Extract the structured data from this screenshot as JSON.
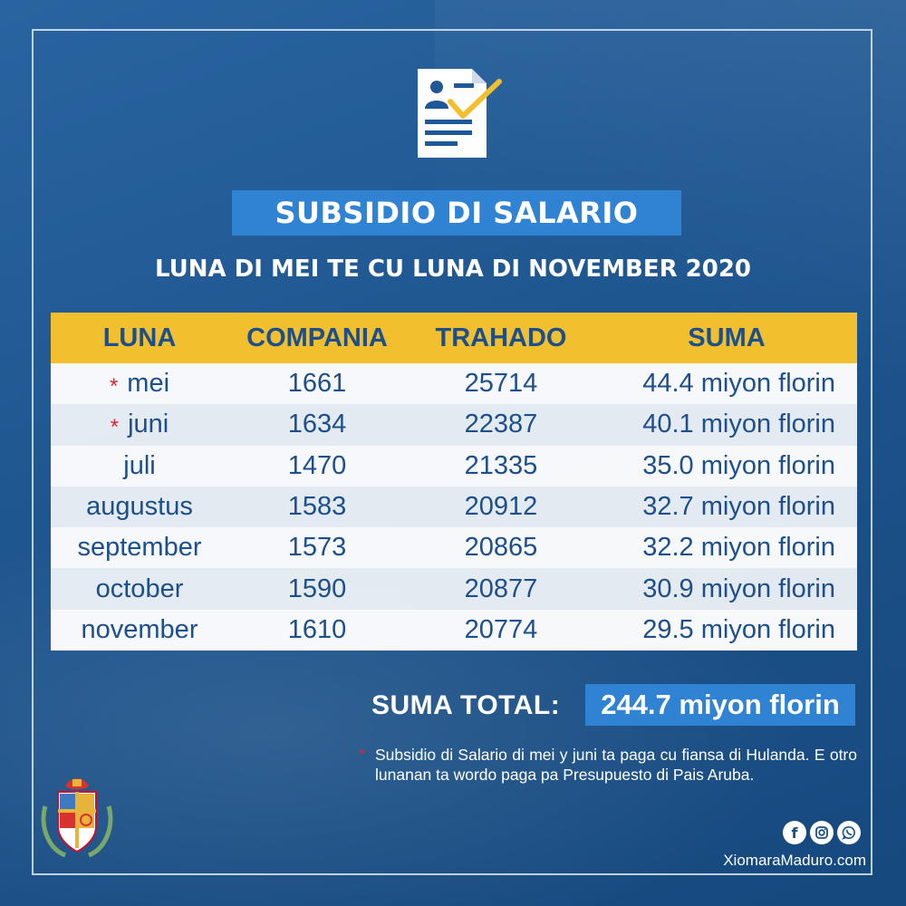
{
  "title": "SUBSIDIO DI SALARIO",
  "subtitle": "LUNA DI MEI TE CU LUNA DI NOVEMBER 2020",
  "table": {
    "headers": [
      "LUNA",
      "COMPANIA",
      "TRAHADO",
      "SUMA"
    ],
    "rows": [
      {
        "luna": "mei",
        "compania": "1661",
        "trahado": "25714",
        "suma": "44.4 miyon florin",
        "marked": true
      },
      {
        "luna": "juni",
        "compania": "1634",
        "trahado": "22387",
        "suma": "40.1 miyon florin",
        "marked": true
      },
      {
        "luna": "juli",
        "compania": "1470",
        "trahado": "21335",
        "suma": "35.0 miyon florin",
        "marked": false
      },
      {
        "luna": "augustus",
        "compania": "1583",
        "trahado": "20912",
        "suma": "32.7 miyon florin",
        "marked": false
      },
      {
        "luna": "september",
        "compania": "1573",
        "trahado": "20865",
        "suma": "32.2 miyon florin",
        "marked": false
      },
      {
        "luna": "october",
        "compania": "1590",
        "trahado": "20877",
        "suma": "30.9 miyon florin",
        "marked": false
      },
      {
        "luna": "november",
        "compania": "1610",
        "trahado": "20774",
        "suma": "29.5 miyon florin",
        "marked": false
      }
    ]
  },
  "total": {
    "label": "SUMA TOTAL:",
    "value": "244.7 miyon florin"
  },
  "footnote": {
    "marker": "*",
    "text": "Subsidio di Salario di mei y juni ta paga cu fiansa di Hulanda. E otro lunanan ta wordo paga pa Presupuesto di Pais Aruba."
  },
  "website": "XiomaraMaduro.com",
  "icons": {
    "document": "document-check-icon",
    "coat_of_arms": "coat-of-arms-icon",
    "social": [
      "facebook-icon",
      "instagram-icon",
      "whatsapp-icon"
    ]
  },
  "colors": {
    "background": "#1f5791",
    "accent_blue": "#2f83d2",
    "header_yellow": "#f2bf2f",
    "text_navy": "#1c4f8c",
    "marker_red": "#e0262c"
  }
}
